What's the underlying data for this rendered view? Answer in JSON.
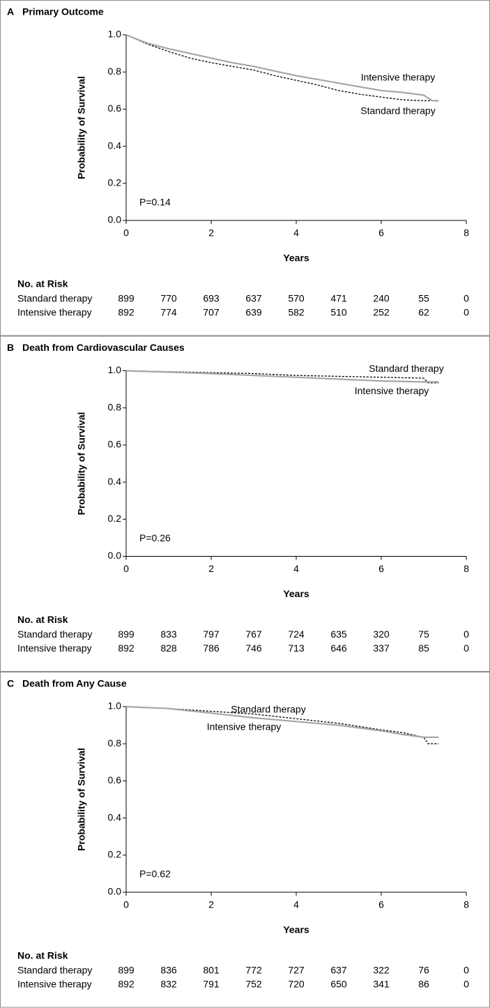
{
  "chart_data": [
    {
      "type": "line",
      "label": "A",
      "title": "Primary Outcome",
      "xlabel": "Years",
      "ylabel": "Probability of Survival",
      "annotation": "P=0.14",
      "xlim": [
        0,
        8
      ],
      "ylim": [
        0,
        1
      ],
      "xticks": [
        0,
        2,
        4,
        6,
        8
      ],
      "yticks": [
        {
          "value": 0,
          "label": "0.0"
        },
        {
          "value": 0.2,
          "label": "0.2"
        },
        {
          "value": 0.4,
          "label": "0.4"
        },
        {
          "value": 0.6,
          "label": "0.6"
        },
        {
          "value": 0.8,
          "label": "0.8"
        },
        {
          "value": 1,
          "label": "1.0"
        }
      ],
      "series": [
        {
          "name": "Standard therapy",
          "color": "#000000",
          "dashed": true,
          "x": [
            0,
            0.5,
            1,
            1.5,
            2,
            2.5,
            3,
            3.5,
            4,
            4.5,
            5,
            5.5,
            6,
            6.5,
            7,
            7.35
          ],
          "values": [
            1.0,
            0.95,
            0.91,
            0.875,
            0.85,
            0.83,
            0.81,
            0.78,
            0.755,
            0.73,
            0.7,
            0.68,
            0.665,
            0.65,
            0.645,
            0.645
          ]
        },
        {
          "name": "Intensive therapy",
          "color": "#a6a6a6",
          "dashed": false,
          "x": [
            0,
            0.5,
            1,
            1.5,
            2,
            2.5,
            3,
            3.5,
            4,
            4.5,
            5,
            5.5,
            6,
            6.5,
            7,
            7.2,
            7.35
          ],
          "values": [
            1.0,
            0.955,
            0.925,
            0.9,
            0.875,
            0.85,
            0.83,
            0.805,
            0.78,
            0.76,
            0.74,
            0.72,
            0.7,
            0.69,
            0.675,
            0.645,
            0.645
          ]
        }
      ],
      "risk_table": {
        "title": "No. at Risk",
        "rows": [
          {
            "name": "Standard therapy",
            "values": [
              899,
              770,
              693,
              637,
              570,
              471,
              240,
              55,
              0
            ]
          },
          {
            "name": "Intensive therapy",
            "values": [
              892,
              774,
              707,
              639,
              582,
              510,
              252,
              62,
              0
            ]
          }
        ]
      }
    },
    {
      "type": "line",
      "label": "B",
      "title": "Death from Cardiovascular Causes",
      "xlabel": "Years",
      "ylabel": "Probability of Survival",
      "annotation": "P=0.26",
      "xlim": [
        0,
        8
      ],
      "ylim": [
        0,
        1
      ],
      "xticks": [
        0,
        2,
        4,
        6,
        8
      ],
      "yticks": [
        {
          "value": 0,
          "label": "0.0"
        },
        {
          "value": 0.2,
          "label": "0.2"
        },
        {
          "value": 0.4,
          "label": "0.4"
        },
        {
          "value": 0.6,
          "label": "0.6"
        },
        {
          "value": 0.8,
          "label": "0.8"
        },
        {
          "value": 1,
          "label": "1.0"
        }
      ],
      "series": [
        {
          "name": "Standard therapy",
          "color": "#000000",
          "dashed": true,
          "x": [
            0,
            1,
            2,
            3,
            4,
            5,
            6,
            7,
            7.1,
            7.35
          ],
          "values": [
            1.0,
            0.995,
            0.99,
            0.985,
            0.975,
            0.97,
            0.965,
            0.96,
            0.935,
            0.935
          ]
        },
        {
          "name": "Intensive therapy",
          "color": "#a6a6a6",
          "dashed": false,
          "x": [
            0,
            1,
            2,
            3,
            4,
            5,
            6,
            7,
            7.35
          ],
          "values": [
            1.0,
            0.993,
            0.985,
            0.975,
            0.965,
            0.955,
            0.945,
            0.94,
            0.94
          ]
        }
      ],
      "risk_table": {
        "title": "No. at Risk",
        "rows": [
          {
            "name": "Standard therapy",
            "values": [
              899,
              833,
              797,
              767,
              724,
              635,
              320,
              75,
              0
            ]
          },
          {
            "name": "Intensive therapy",
            "values": [
              892,
              828,
              786,
              746,
              713,
              646,
              337,
              85,
              0
            ]
          }
        ]
      }
    },
    {
      "type": "line",
      "label": "C",
      "title": "Death from Any Cause",
      "xlabel": "Years",
      "ylabel": "Probability of Survival",
      "annotation": "P=0.62",
      "xlim": [
        0,
        8
      ],
      "ylim": [
        0,
        1
      ],
      "xticks": [
        0,
        2,
        4,
        6,
        8
      ],
      "yticks": [
        {
          "value": 0,
          "label": "0.0"
        },
        {
          "value": 0.2,
          "label": "0.2"
        },
        {
          "value": 0.4,
          "label": "0.4"
        },
        {
          "value": 0.6,
          "label": "0.6"
        },
        {
          "value": 0.8,
          "label": "0.8"
        },
        {
          "value": 1,
          "label": "1.0"
        }
      ],
      "series": [
        {
          "name": "Standard therapy",
          "color": "#000000",
          "dashed": true,
          "x": [
            0,
            1,
            2,
            3,
            4,
            5,
            6,
            6.5,
            7,
            7.1,
            7.35
          ],
          "values": [
            1.0,
            0.99,
            0.975,
            0.96,
            0.935,
            0.91,
            0.875,
            0.86,
            0.835,
            0.8,
            0.8
          ]
        },
        {
          "name": "Intensive therapy",
          "color": "#a6a6a6",
          "dashed": false,
          "x": [
            0,
            1,
            2,
            3,
            4,
            5,
            6,
            6.5,
            7,
            7.35
          ],
          "values": [
            1.0,
            0.99,
            0.965,
            0.94,
            0.92,
            0.9,
            0.87,
            0.85,
            0.835,
            0.835
          ]
        }
      ],
      "risk_table": {
        "title": "No. at Risk",
        "rows": [
          {
            "name": "Standard therapy",
            "values": [
              899,
              836,
              801,
              772,
              727,
              637,
              322,
              76,
              0
            ]
          },
          {
            "name": "Intensive therapy",
            "values": [
              892,
              832,
              791,
              752,
              720,
              650,
              341,
              86,
              0
            ]
          }
        ]
      }
    }
  ]
}
